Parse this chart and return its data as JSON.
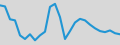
{
  "x": [
    0,
    1,
    2,
    3,
    4,
    5,
    6,
    7,
    8,
    9,
    10,
    11,
    12,
    13,
    14,
    15,
    16,
    17,
    18,
    19,
    20,
    21,
    22,
    23,
    24
  ],
  "y": [
    0.85,
    0.8,
    0.2,
    0.15,
    -0.55,
    -0.72,
    -0.5,
    -0.78,
    -0.55,
    -0.38,
    0.78,
    0.92,
    0.3,
    -0.72,
    -0.35,
    0.05,
    0.22,
    0.15,
    -0.05,
    -0.22,
    -0.35,
    -0.4,
    -0.32,
    -0.45,
    -0.5
  ],
  "line_color": "#2196d4",
  "linewidth": 1.5,
  "background_color": "#d8d8d8",
  "ylim": [
    -1.0,
    1.1
  ],
  "xlim": [
    0,
    24
  ]
}
